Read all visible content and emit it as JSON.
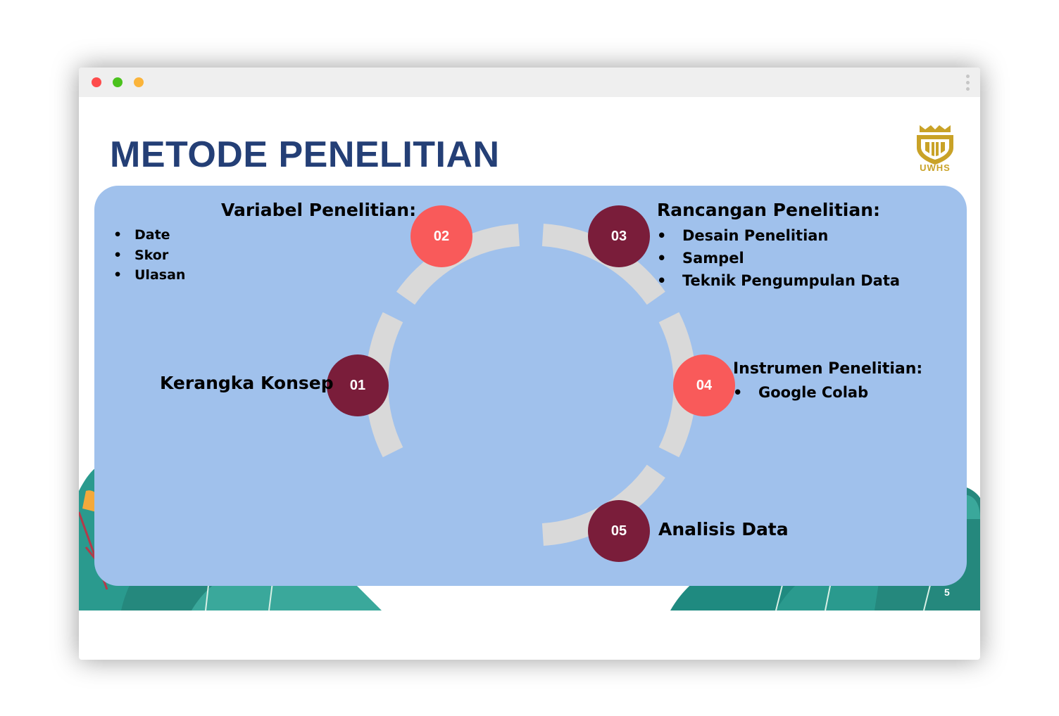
{
  "window": {
    "traffic_lights": [
      "#fe4b4b",
      "#4bc21d",
      "#fbb43a"
    ],
    "menu_icon": "kebab-vertical-icon"
  },
  "slide": {
    "title": "METODE PENELITIAN",
    "logo_text": "UWHS",
    "page_number": "5",
    "colors": {
      "title": "#243f76",
      "panel": "#a0c1ec",
      "ring": "#d9d9d9",
      "node_dark": "#7a1d3a",
      "node_coral": "#f95a5a",
      "logo_gold": "#c9a227",
      "foliage": "#2a9a8e"
    },
    "steps": [
      {
        "number": "01",
        "label": "Kerangka Konsep",
        "bullets": []
      },
      {
        "number": "02",
        "label": "Variabel Penelitian:",
        "bullets": [
          "Date",
          "Skor",
          "Ulasan"
        ]
      },
      {
        "number": "03",
        "label": "Rancangan Penelitian:",
        "bullets": [
          "Desain Penelitian",
          "Sampel",
          "Teknik Pengumpulan Data"
        ]
      },
      {
        "number": "04",
        "label": "Instrumen Penelitian:",
        "bullets": [
          "Google Colab"
        ]
      },
      {
        "number": "05",
        "label": "Analisis Data",
        "bullets": []
      }
    ]
  }
}
